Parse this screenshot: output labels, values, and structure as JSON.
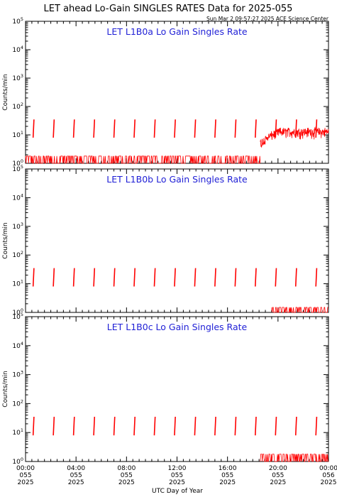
{
  "title": "LET ahead Lo-Gain SINGLES RATES Data for 2025-055",
  "timestamp": "Sun Mar  2 09:57:27 2025 ACE Science Center",
  "colors": {
    "data": "#ff0000",
    "panel_title": "#1f1fd6",
    "axis": "#000000"
  },
  "chart_data": {
    "type": "line",
    "x_label": "UTC Day of Year",
    "x_range_hours": [
      0,
      24
    ],
    "x_ticks": [
      {
        "hour": 0,
        "time": "00:00",
        "doy": "055",
        "year": "2025"
      },
      {
        "hour": 4,
        "time": "04:00",
        "doy": "055",
        "year": "2025"
      },
      {
        "hour": 8,
        "time": "08:00",
        "doy": "055",
        "year": "2025"
      },
      {
        "hour": 12,
        "time": "12:00",
        "doy": "055",
        "year": "2025"
      },
      {
        "hour": 16,
        "time": "16:00",
        "doy": "055",
        "year": "2025"
      },
      {
        "hour": 20,
        "time": "20:00",
        "doy": "055",
        "year": "2025"
      },
      {
        "hour": 24,
        "time": "00:00",
        "doy": "056",
        "year": "2025"
      }
    ],
    "y_scale": "log",
    "y_range": [
      1,
      100000
    ],
    "y_tick_exponents": [
      0,
      1,
      2,
      3,
      4,
      5
    ],
    "y_label": "Counts/min",
    "panels": [
      {
        "title": "LET L1B0a Lo Gain Singles Rate",
        "spike_hours": [
          0.6,
          2.2,
          3.8,
          5.4,
          7.0,
          8.6,
          10.2,
          11.8,
          13.4,
          15.0,
          16.6,
          18.2,
          19.8,
          21.4,
          23.0
        ],
        "spike_range": [
          8,
          35
        ],
        "background_start_hour": 0.0,
        "background_end_hour": 18.6,
        "background_level": 1.8,
        "active_start_hour": 18.6,
        "active_level": [
          3,
          15
        ]
      },
      {
        "title": "LET L1B0b Lo Gain Singles Rate",
        "spike_hours": [
          0.6,
          2.2,
          3.8,
          5.4,
          7.0,
          8.6,
          10.2,
          11.8,
          13.4,
          15.0,
          16.6,
          18.2,
          19.8,
          21.4,
          23.0
        ],
        "spike_range": [
          8,
          35
        ],
        "background_start_hour": 19.5,
        "background_end_hour": 24,
        "background_level": 1.5,
        "active_start_hour": 24,
        "active_level": [
          1,
          1
        ]
      },
      {
        "title": "LET L1B0c Lo Gain Singles Rate",
        "spike_hours": [
          0.6,
          2.2,
          3.8,
          5.4,
          7.0,
          8.6,
          10.2,
          11.8,
          13.4,
          15.0,
          16.6,
          18.2,
          19.8,
          21.4,
          23.0
        ],
        "spike_range": [
          8,
          35
        ],
        "background_start_hour": 18.6,
        "background_end_hour": 24,
        "background_level": 1.8,
        "active_start_hour": 24,
        "active_level": [
          1,
          1
        ]
      }
    ]
  }
}
